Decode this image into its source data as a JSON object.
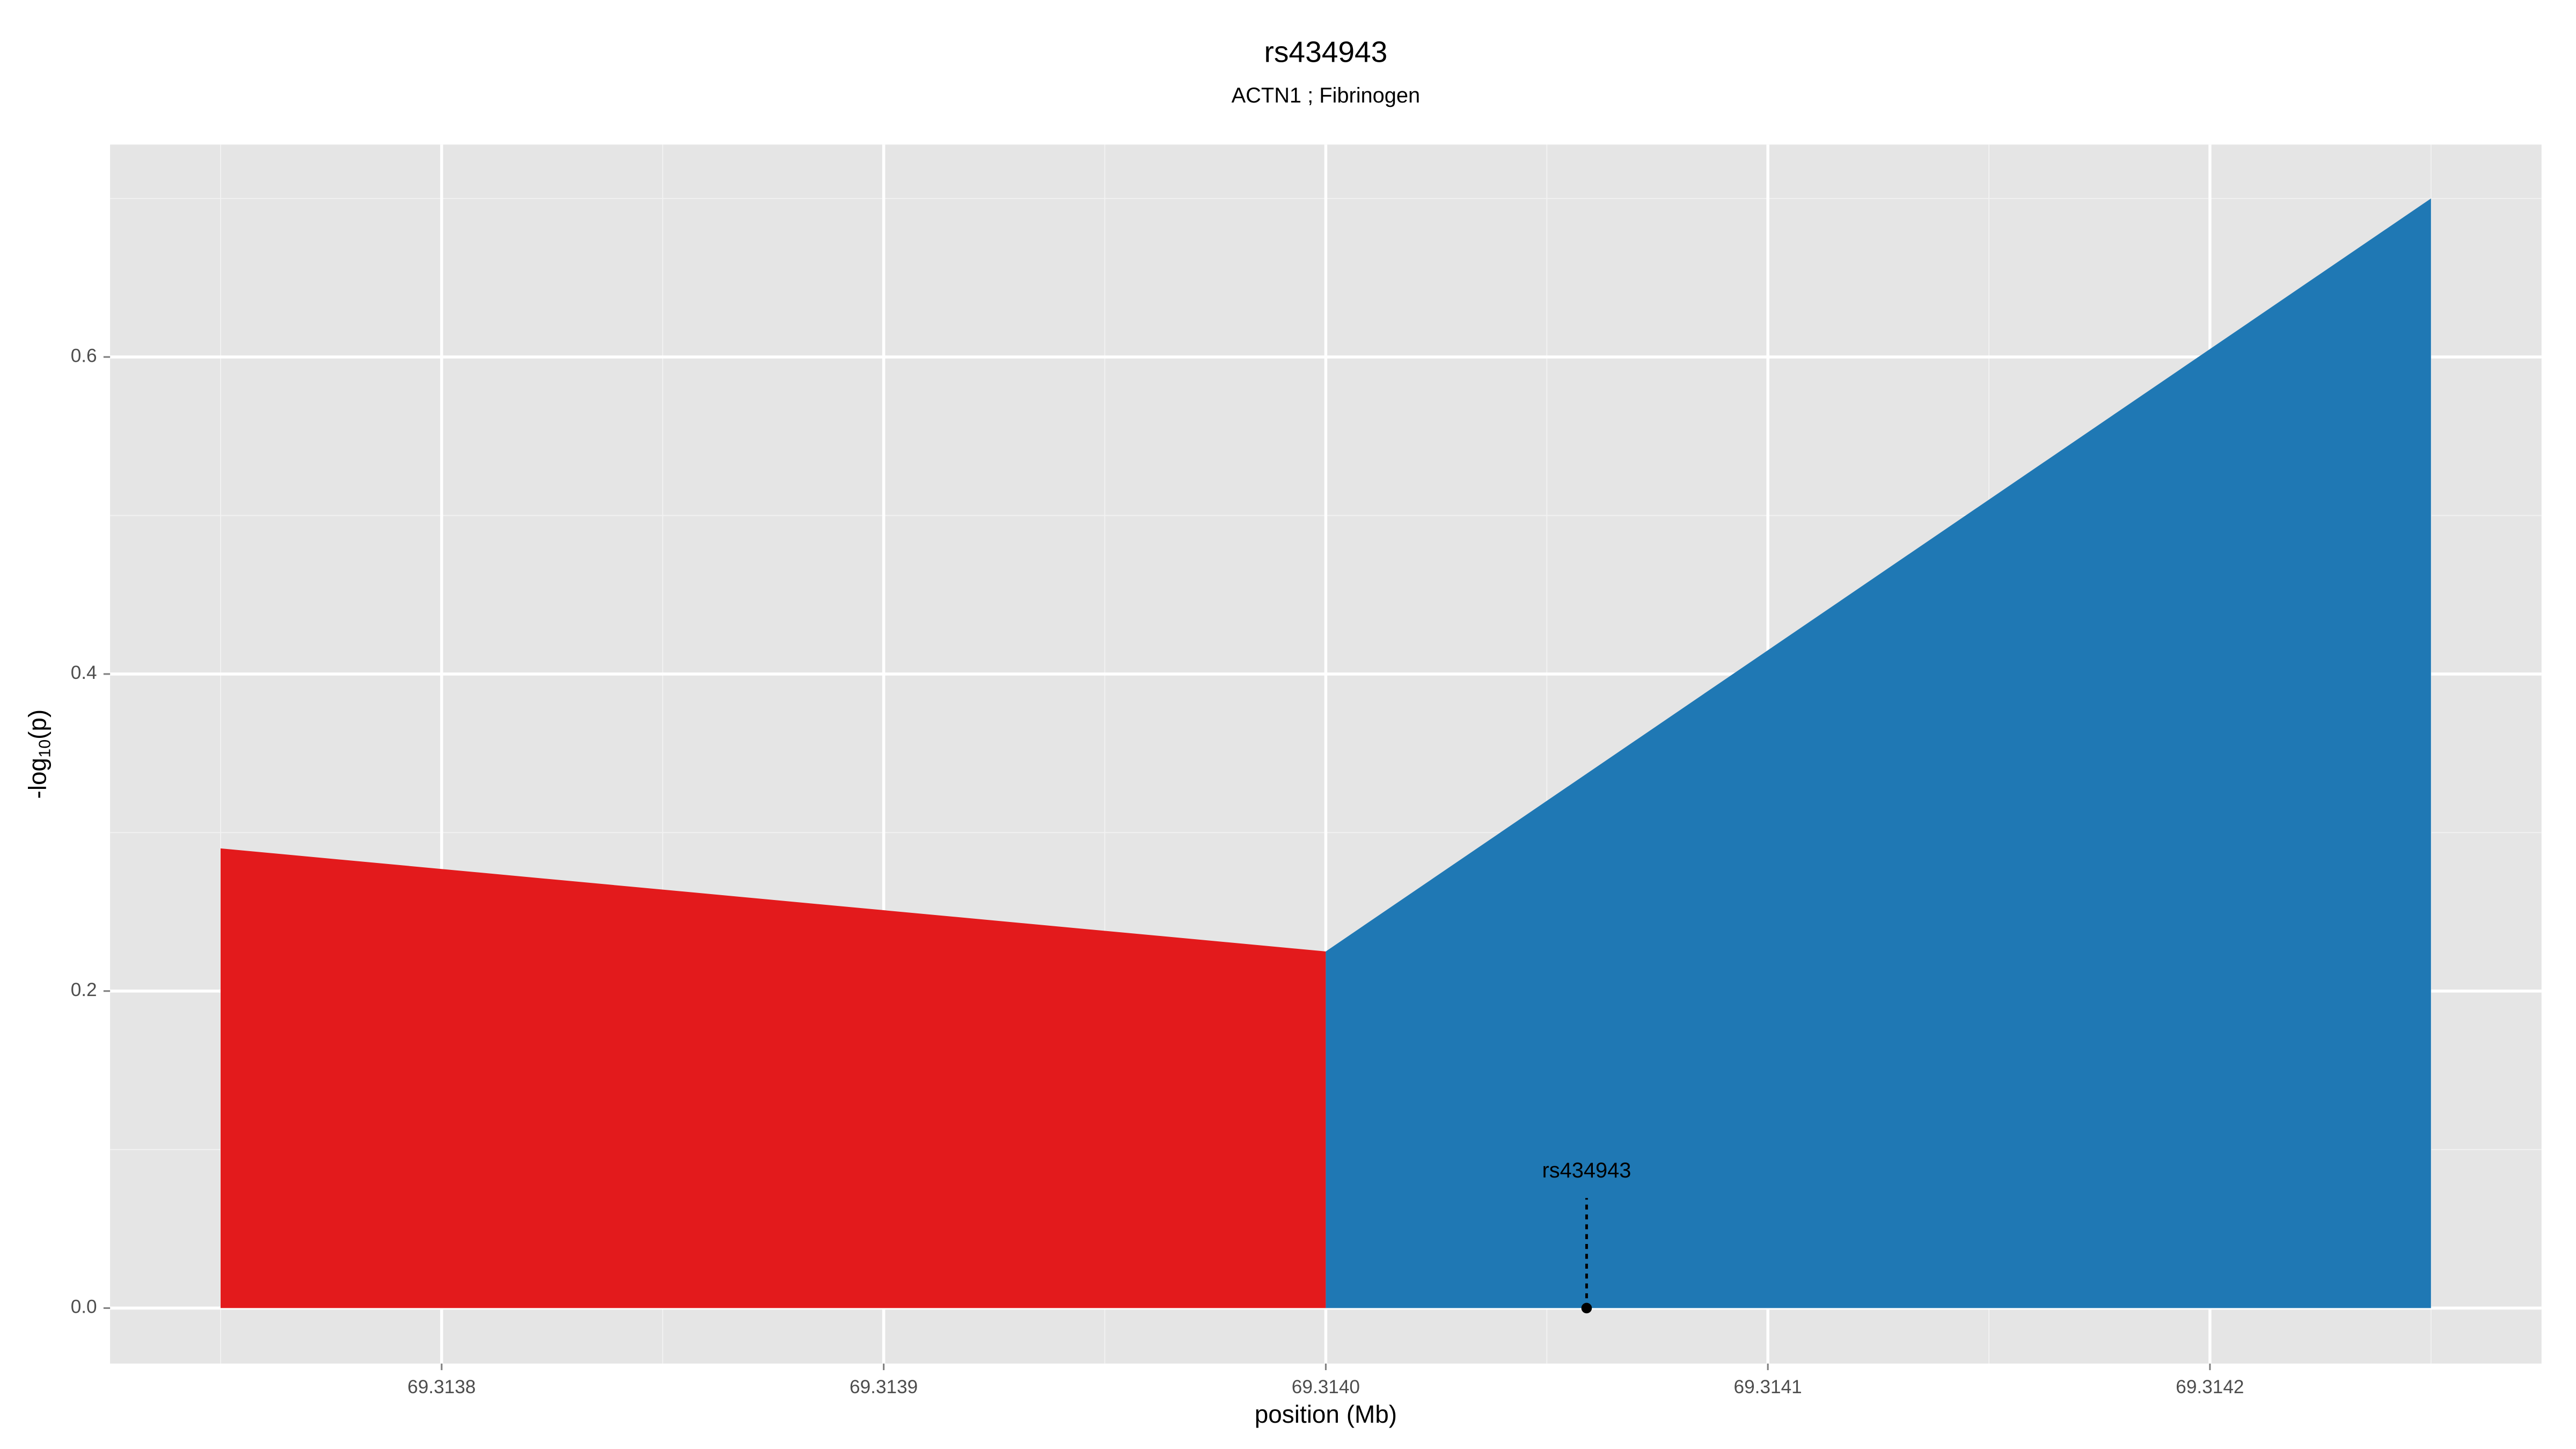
{
  "chart_data": {
    "type": "area",
    "title": "rs434943",
    "subtitle": "ACTN1 ; Fibrinogen",
    "x_label": "position (Mb)",
    "y_label": {
      "prefix": "-log",
      "subscript": "10",
      "suffix": "(p)"
    },
    "series": [
      {
        "color": "#e31a1c",
        "x": [
          69.31375,
          69.314
        ],
        "values": [
          0.29,
          0.225
        ]
      },
      {
        "color": "#1f78b4",
        "x": [
          69.314,
          69.31425
        ],
        "values": [
          0.225,
          0.7
        ]
      }
    ],
    "annotation": {
      "label": "rs434943",
      "x": 69.314059,
      "y": 0
    },
    "xlim": [
      69.313725,
      69.314275
    ],
    "ylim": [
      -0.035,
      0.734
    ],
    "xticks": [
      69.3138,
      69.3139,
      {
        "value": 69.314,
        "label": "69.3140"
      },
      69.3141,
      69.3142
    ],
    "yticks": [
      {
        "value": 0,
        "label": "0.0"
      },
      0.2,
      0.4,
      0.6
    ],
    "grid": true
  }
}
